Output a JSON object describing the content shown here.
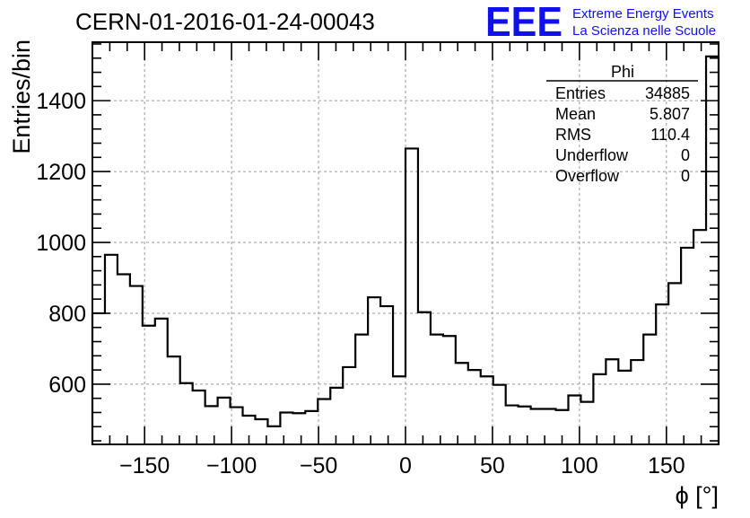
{
  "logo": {
    "letters": "EEE",
    "line1": "Extreme Energy Events",
    "line2": "La Scienza nelle Scuole",
    "color": "#1010ee"
  },
  "stats_box": {
    "title": "Phi",
    "rows": [
      {
        "label": "Entries",
        "value": "34885"
      },
      {
        "label": "Mean",
        "value": "5.807"
      },
      {
        "label": "RMS",
        "value": "110.4"
      },
      {
        "label": "Underflow",
        "value": "0"
      },
      {
        "label": "Overflow",
        "value": "0"
      }
    ]
  },
  "chart_data": {
    "type": "bar",
    "histogram": true,
    "title": "CERN-01-2016-01-24-00043",
    "xlabel": "ϕ [°]",
    "ylabel": "Entries/bin",
    "xlim": [
      -180,
      180
    ],
    "ylim": [
      430,
      1565
    ],
    "bin_width": 7.2,
    "xticks": [
      -150,
      -100,
      -50,
      0,
      50,
      100,
      150
    ],
    "xtick_labels": [
      "−150",
      "−100",
      "−50",
      "0",
      "50",
      "100",
      "150"
    ],
    "yticks": [
      600,
      800,
      1000,
      1200,
      1400
    ],
    "ytick_labels": [
      "600",
      "800",
      "1000",
      "1200",
      "1400"
    ],
    "grid": true,
    "line_color": "#000000",
    "values": [
      800,
      965,
      910,
      877,
      765,
      785,
      678,
      603,
      582,
      538,
      562,
      535,
      511,
      501,
      481,
      520,
      518,
      524,
      558,
      590,
      648,
      740,
      845,
      820,
      622,
      1265,
      803,
      740,
      736,
      660,
      640,
      622,
      598,
      540,
      537,
      530,
      530,
      527,
      568,
      550,
      628,
      670,
      638,
      668,
      740,
      825,
      885,
      985,
      1035,
      1525
    ]
  }
}
